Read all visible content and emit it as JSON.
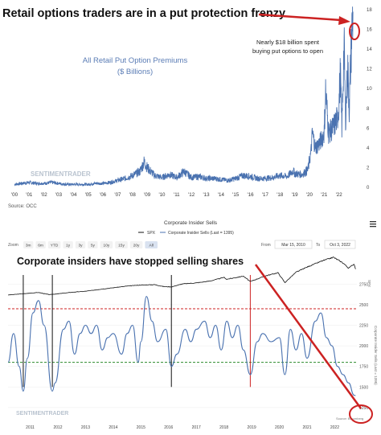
{
  "chart_data": [
    {
      "type": "area",
      "title": "Retail options traders are in a put protection frenzy",
      "subtitle": "All Retail Put Option Premiums",
      "subtitle2": "($ Billions)",
      "annotation": "Nearly $18 billion spent",
      "annotation2": "buying put options to open",
      "source": "Source: OCC",
      "watermark": "SENTIMENTRADER",
      "x_tick_labels": [
        "'00",
        "'01",
        "'02",
        "'03",
        "'04",
        "'05",
        "'06",
        "'07",
        "'08",
        "'09",
        "'10",
        "'11",
        "'12",
        "'13",
        "'14",
        "'15",
        "'16",
        "'17",
        "'18",
        "'19",
        "'20",
        "'21",
        "'22"
      ],
      "y_tick_labels": [
        "0",
        "2",
        "4",
        "6",
        "8",
        "10",
        "12",
        "14",
        "16",
        "18"
      ],
      "ylim": [
        0,
        18
      ],
      "xlim": [
        2000,
        2023
      ],
      "line_color": "#4a72b0",
      "highlight_color": "#cc2222",
      "points": [
        [
          2000.0,
          0.3
        ],
        [
          2000.5,
          0.4
        ],
        [
          2001.0,
          0.5
        ],
        [
          2001.5,
          0.4
        ],
        [
          2002.0,
          0.4
        ],
        [
          2002.5,
          0.5
        ],
        [
          2003.0,
          0.4
        ],
        [
          2003.5,
          0.3
        ],
        [
          2004.0,
          0.3
        ],
        [
          2004.5,
          0.3
        ],
        [
          2005.0,
          0.3
        ],
        [
          2005.5,
          0.4
        ],
        [
          2006.0,
          0.4
        ],
        [
          2006.5,
          0.5
        ],
        [
          2007.0,
          0.7
        ],
        [
          2007.5,
          0.9
        ],
        [
          2008.0,
          1.2
        ],
        [
          2008.5,
          1.6
        ],
        [
          2008.8,
          2.6
        ],
        [
          2009.0,
          2.0
        ],
        [
          2009.5,
          1.2
        ],
        [
          2010.0,
          1.0
        ],
        [
          2010.5,
          1.3
        ],
        [
          2011.0,
          1.0
        ],
        [
          2011.5,
          1.6
        ],
        [
          2012.0,
          1.0
        ],
        [
          2012.5,
          1.1
        ],
        [
          2013.0,
          0.9
        ],
        [
          2013.5,
          0.9
        ],
        [
          2014.0,
          0.8
        ],
        [
          2014.5,
          0.7
        ],
        [
          2015.0,
          0.9
        ],
        [
          2015.5,
          1.2
        ],
        [
          2016.0,
          1.1
        ],
        [
          2016.5,
          0.9
        ],
        [
          2017.0,
          0.9
        ],
        [
          2017.5,
          1.0
        ],
        [
          2018.0,
          1.2
        ],
        [
          2018.5,
          1.1
        ],
        [
          2018.9,
          1.7
        ],
        [
          2019.0,
          1.4
        ],
        [
          2019.5,
          1.3
        ],
        [
          2019.9,
          1.8
        ],
        [
          2020.1,
          3.5
        ],
        [
          2020.2,
          5.5
        ],
        [
          2020.4,
          4.0
        ],
        [
          2020.7,
          4.5
        ],
        [
          2021.0,
          5.5
        ],
        [
          2021.1,
          9.8
        ],
        [
          2021.3,
          5.5
        ],
        [
          2021.6,
          6.0
        ],
        [
          2021.9,
          7.0
        ],
        [
          2022.0,
          8.5
        ],
        [
          2022.1,
          11.5
        ],
        [
          2022.2,
          6.0
        ],
        [
          2022.35,
          14.5
        ],
        [
          2022.45,
          7.0
        ],
        [
          2022.6,
          12.0
        ],
        [
          2022.7,
          8.0
        ],
        [
          2022.85,
          15.0
        ],
        [
          2022.95,
          17.8
        ]
      ]
    },
    {
      "type": "line",
      "title": "Corporate Insider Sells",
      "overlay_title": "Corporate insiders have stopped selling shares",
      "legend": [
        "SPX",
        "Corporate Insider Sells (Last = 1395)"
      ],
      "legend_placement": "top",
      "zoom_label": "Zoom",
      "zoom_buttons": [
        "3m",
        "6m",
        "YTD",
        "1y",
        "3y",
        "5y",
        "10y",
        "15y",
        "20y",
        "All"
      ],
      "date_from_label": "From",
      "date_from": "Mar 15, 2010",
      "date_to_label": "To",
      "date_to": "Oct 3, 2022",
      "x_tick_labels": [
        "2011",
        "2012",
        "2013",
        "2014",
        "2015",
        "2016",
        "2017",
        "2018",
        "2019",
        "2020",
        "2021",
        "2022"
      ],
      "y_right_tick_labels": [
        "2750",
        "2500",
        "2250",
        "2000",
        "1750",
        "1500",
        "1250"
      ],
      "y_right_axis_label": "Corporate Insider Sells (Last = 1395)",
      "y_spx_axis_label": "SPX",
      "source": "Source: Bloomberg",
      "watermark": "SENTIMENTRADER",
      "hlines": [
        {
          "value": 2450,
          "color": "#cc2222",
          "style": "dashed"
        },
        {
          "value": 1800,
          "color": "#2a8a2a",
          "style": "dashed"
        }
      ],
      "ylim": [
        1200,
        2900
      ],
      "xlim": [
        2010.2,
        2022.8
      ],
      "series_spx": [
        [
          2010.2,
          1100
        ],
        [
          2011.3,
          1340
        ],
        [
          2011.7,
          1130
        ],
        [
          2012.5,
          1360
        ],
        [
          2013.0,
          1460
        ],
        [
          2013.5,
          1640
        ],
        [
          2014.0,
          1800
        ],
        [
          2014.5,
          1960
        ],
        [
          2015.0,
          2060
        ],
        [
          2015.5,
          2100
        ],
        [
          2015.8,
          1920
        ],
        [
          2016.1,
          1880
        ],
        [
          2016.5,
          2170
        ],
        [
          2017.0,
          2270
        ],
        [
          2017.5,
          2450
        ],
        [
          2018.0,
          2800
        ],
        [
          2018.1,
          2620
        ],
        [
          2018.7,
          2920
        ],
        [
          2018.95,
          2400
        ],
        [
          2019.5,
          2950
        ],
        [
          2019.95,
          3250
        ],
        [
          2020.2,
          2300
        ],
        [
          2020.6,
          3300
        ],
        [
          2021.0,
          3800
        ],
        [
          2021.5,
          4350
        ],
        [
          2021.95,
          4750
        ],
        [
          2022.3,
          4200
        ],
        [
          2022.5,
          3700
        ],
        [
          2022.7,
          4100
        ],
        [
          2022.75,
          3600
        ]
      ],
      "series_sells": [
        [
          2010.2,
          1800
        ],
        [
          2010.4,
          2150
        ],
        [
          2010.6,
          1750
        ],
        [
          2010.75,
          1450
        ],
        [
          2010.9,
          1850
        ],
        [
          2011.1,
          2400
        ],
        [
          2011.3,
          2550
        ],
        [
          2011.5,
          2250
        ],
        [
          2011.8,
          1450
        ],
        [
          2011.9,
          1550
        ],
        [
          2012.2,
          2200
        ],
        [
          2012.4,
          2300
        ],
        [
          2012.6,
          1900
        ],
        [
          2012.8,
          2150
        ],
        [
          2013.0,
          2250
        ],
        [
          2013.2,
          2150
        ],
        [
          2013.4,
          2250
        ],
        [
          2013.6,
          1950
        ],
        [
          2013.8,
          2100
        ],
        [
          2014.0,
          2150
        ],
        [
          2014.3,
          1900
        ],
        [
          2014.5,
          2150
        ],
        [
          2014.7,
          2250
        ],
        [
          2014.9,
          1800
        ],
        [
          2015.0,
          2050
        ],
        [
          2015.2,
          2600
        ],
        [
          2015.4,
          2300
        ],
        [
          2015.6,
          2050
        ],
        [
          2015.9,
          2200
        ],
        [
          2016.1,
          1750
        ],
        [
          2016.3,
          1900
        ],
        [
          2016.6,
          2200
        ],
        [
          2016.8,
          2050
        ],
        [
          2017.0,
          2200
        ],
        [
          2017.3,
          2300
        ],
        [
          2017.5,
          2100
        ],
        [
          2017.7,
          2250
        ],
        [
          2017.9,
          1950
        ],
        [
          2018.1,
          2300
        ],
        [
          2018.3,
          2100
        ],
        [
          2018.5,
          2250
        ],
        [
          2018.7,
          1950
        ],
        [
          2018.95,
          1650
        ],
        [
          2019.2,
          2050
        ],
        [
          2019.4,
          2150
        ],
        [
          2019.7,
          2050
        ],
        [
          2020.0,
          2100
        ],
        [
          2020.2,
          1650
        ],
        [
          2020.4,
          2200
        ],
        [
          2020.6,
          1950
        ],
        [
          2020.8,
          2150
        ],
        [
          2021.0,
          1850
        ],
        [
          2021.3,
          2300
        ],
        [
          2021.5,
          2400
        ],
        [
          2021.7,
          2100
        ],
        [
          2021.9,
          2000
        ],
        [
          2022.1,
          1750
        ],
        [
          2022.3,
          1650
        ],
        [
          2022.5,
          1550
        ],
        [
          2022.7,
          1400
        ],
        [
          2022.75,
          1395
        ]
      ]
    }
  ]
}
